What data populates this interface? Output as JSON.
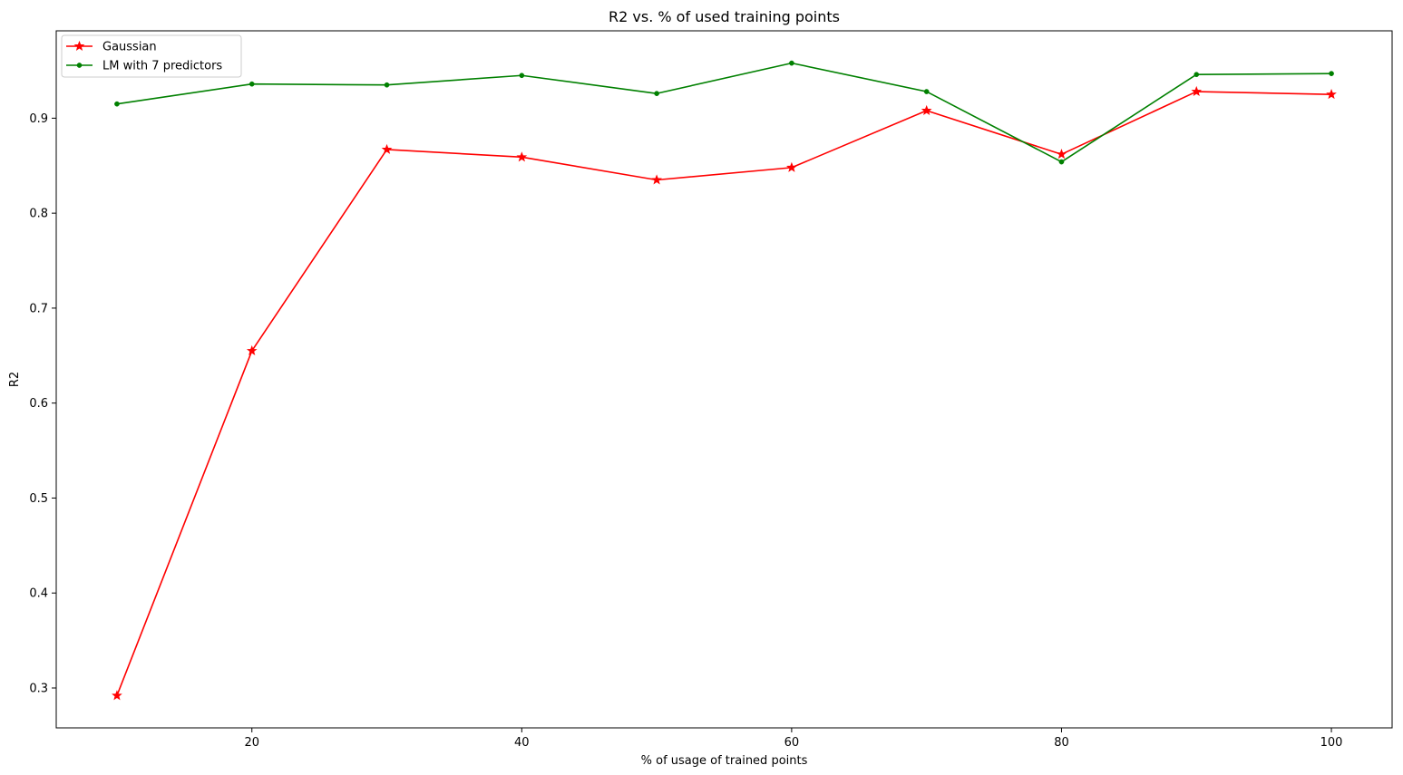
{
  "chart_data": {
    "type": "line",
    "title": "R2 vs. % of used training points",
    "xlabel": "% of usage of trained points",
    "ylabel": "R2",
    "xlim": [
      5.5,
      104.5
    ],
    "ylim": [
      0.258,
      0.992
    ],
    "xticks": [
      20,
      40,
      60,
      80,
      100
    ],
    "yticks": [
      0.3,
      0.4,
      0.5,
      0.6,
      0.7,
      0.8,
      0.9
    ],
    "grid": false,
    "legend_position": "upper left",
    "x": [
      10,
      20,
      30,
      40,
      50,
      60,
      70,
      80,
      90,
      100
    ],
    "series": [
      {
        "name": "Gaussian",
        "color": "#ff0000",
        "marker": "star",
        "values": [
          0.292,
          0.655,
          0.867,
          0.859,
          0.835,
          0.848,
          0.908,
          0.862,
          0.928,
          0.925
        ]
      },
      {
        "name": "LM with 7 predictors",
        "color": "#008000",
        "marker": "dot",
        "values": [
          0.915,
          0.936,
          0.935,
          0.945,
          0.926,
          0.958,
          0.928,
          0.854,
          0.946,
          0.947
        ]
      }
    ]
  }
}
